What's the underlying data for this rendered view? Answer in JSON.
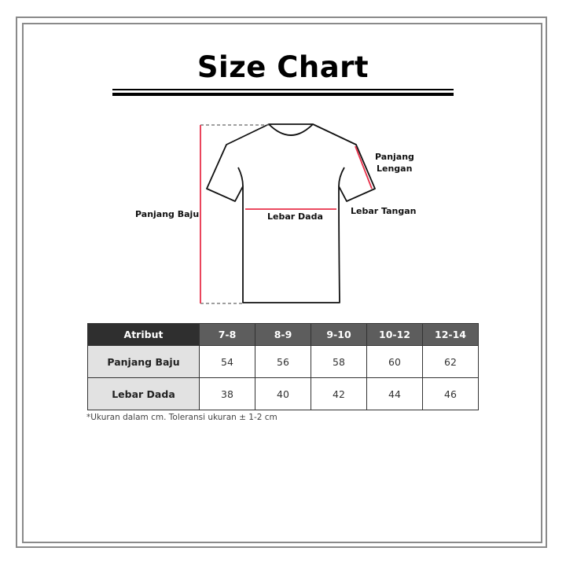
{
  "title": "Size Chart",
  "diagram": {
    "labels": {
      "panjang_baju": "Panjang Baju",
      "lebar_dada": "Lebar Dada",
      "panjang_lengan_1": "Panjang",
      "panjang_lengan_2": "Lengan",
      "lebar_tangan": "Lebar Tangan"
    },
    "measure_color": "#e8304a"
  },
  "table": {
    "header": [
      "Atribut",
      "7-8",
      "8-9",
      "9-10",
      "10-12",
      "12-14"
    ],
    "rows": [
      {
        "label": "Panjang Baju",
        "values": [
          "54",
          "56",
          "58",
          "60",
          "62"
        ]
      },
      {
        "label": "Lebar Dada",
        "values": [
          "38",
          "40",
          "42",
          "44",
          "46"
        ]
      }
    ]
  },
  "note": "*Ukuran dalam cm. Toleransi ukuran ± 1-2 cm"
}
